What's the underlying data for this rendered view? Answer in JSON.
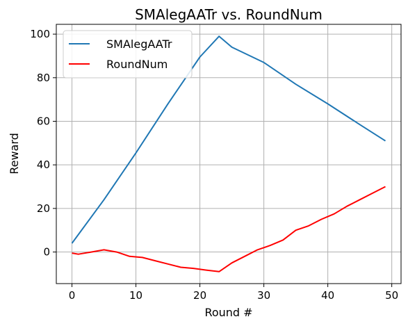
{
  "chart_data": {
    "type": "line",
    "title": "SMAlegAATr vs. RoundNum",
    "xlabel": "Round #",
    "ylabel": "Reward",
    "xlim": [
      -2.45,
      51.45
    ],
    "ylim": [
      -14.5,
      104.5
    ],
    "xticks": [
      0,
      10,
      20,
      30,
      40,
      50
    ],
    "yticks": [
      0,
      20,
      40,
      60,
      80,
      100
    ],
    "grid": true,
    "legend": "top-left",
    "series": [
      {
        "name": "SMAlegAATr",
        "color": "#1f77b4",
        "x": [
          0,
          5,
          10,
          15,
          20,
          23,
          25,
          30,
          35,
          40,
          45,
          49
        ],
        "y": [
          4,
          24,
          45.5,
          68,
          89.5,
          99,
          94,
          87,
          77,
          68,
          58.5,
          51
        ]
      },
      {
        "name": "RoundNum",
        "color": "#ff0000",
        "x": [
          0,
          1,
          3,
          5,
          7,
          9,
          11,
          13,
          15,
          17,
          19,
          21,
          23,
          25,
          27,
          29,
          31,
          33,
          35,
          37,
          39,
          41,
          43,
          45,
          47,
          49
        ],
        "y": [
          -0.5,
          -1,
          0,
          1,
          0,
          -2,
          -2.5,
          -4,
          -5.5,
          -7,
          -7.5,
          -8.3,
          -9,
          -5,
          -2,
          1,
          3,
          5.5,
          10,
          12,
          15,
          17.5,
          21,
          24,
          27,
          30
        ]
      }
    ]
  }
}
